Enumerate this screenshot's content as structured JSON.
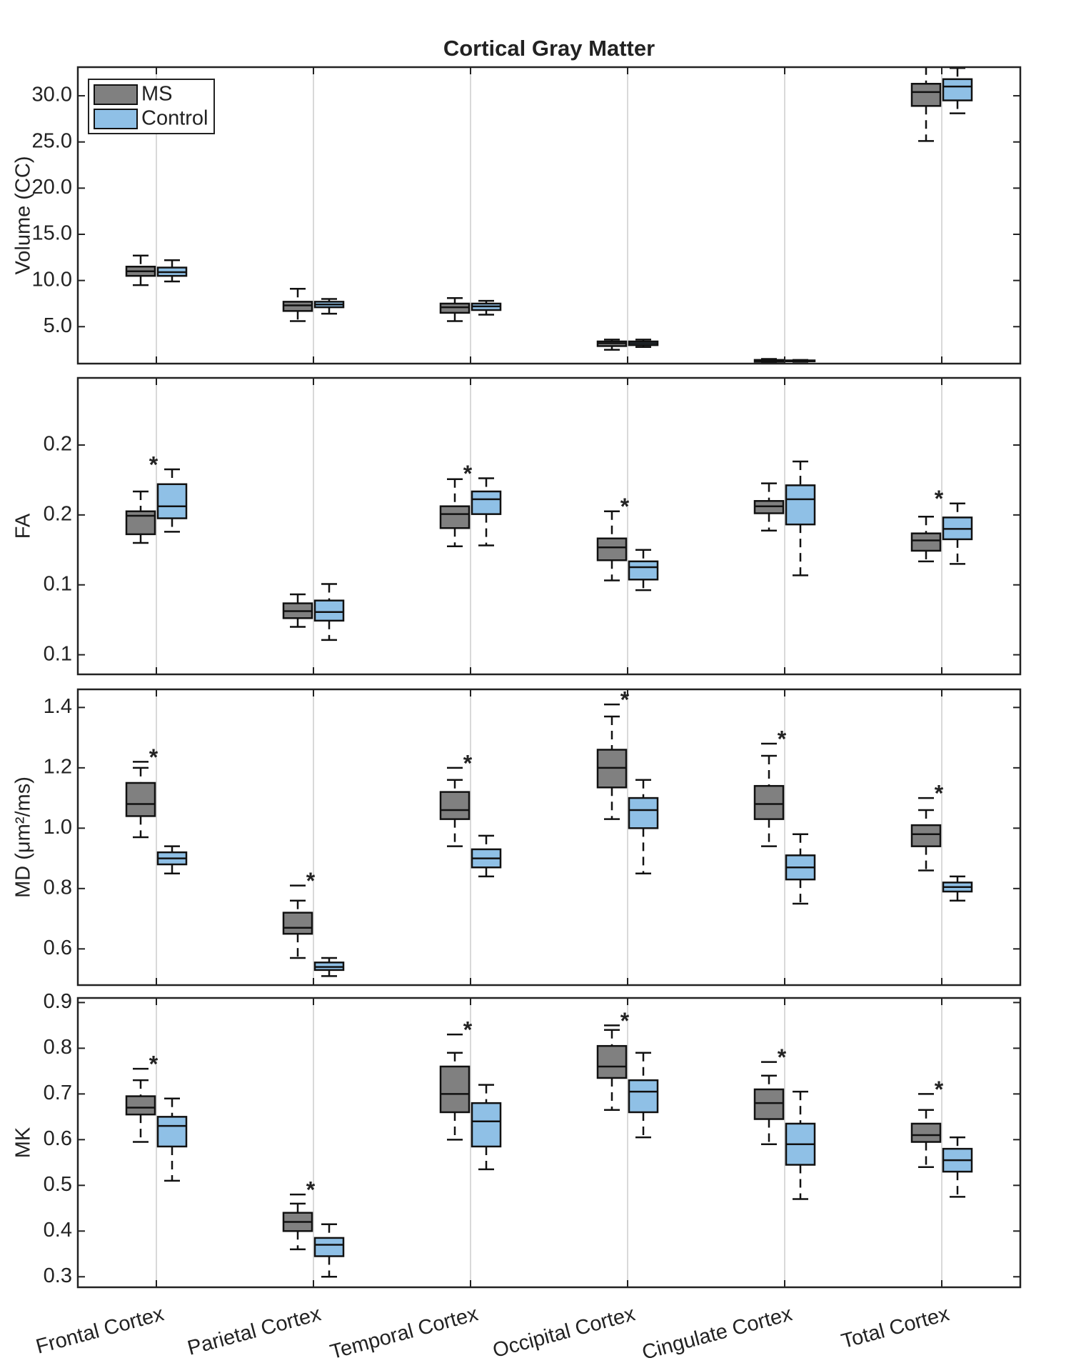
{
  "chart_data": [
    {
      "type": "box",
      "title": "Cortical Gray Matter",
      "ylabel": "Volume (CC)",
      "ylim": [
        1,
        33.1
      ],
      "yticks": [
        {
          "value": 5,
          "label": "5.0"
        },
        {
          "value": 10,
          "label": "10.0"
        },
        {
          "value": 15,
          "label": "15.0"
        },
        {
          "value": 20,
          "label": "20.0"
        },
        {
          "value": 25,
          "label": "25.0"
        },
        {
          "value": 30,
          "label": "30.0"
        }
      ],
      "xgrid": true,
      "legend": "upper-left",
      "annotations": [
        null,
        null,
        null,
        null,
        null,
        null
      ],
      "series": [
        {
          "name": "MS",
          "color": "#808080",
          "boxes": [
            {
              "whislo": 9.5,
              "q1": 10.5,
              "med": 11.0,
              "q3": 11.5,
              "whishi": 12.7,
              "outliers": []
            },
            {
              "whislo": 5.6,
              "q1": 6.7,
              "med": 7.3,
              "q3": 7.7,
              "whishi": 9.1,
              "outliers": []
            },
            {
              "whislo": 5.6,
              "q1": 6.5,
              "med": 7.1,
              "q3": 7.5,
              "whishi": 8.1,
              "outliers": []
            },
            {
              "whislo": 2.5,
              "q1": 2.9,
              "med": 3.2,
              "q3": 3.4,
              "whishi": 3.6,
              "outliers": []
            },
            {
              "whislo": 1.1,
              "q1": 1.2,
              "med": 1.3,
              "q3": 1.4,
              "whishi": 1.5,
              "outliers": []
            },
            {
              "whislo": 25.1,
              "q1": 28.9,
              "med": 30.4,
              "q3": 31.3,
              "whishi": 33.2,
              "outliers": []
            }
          ]
        },
        {
          "name": "Control",
          "color": "#8fc0e6",
          "boxes": [
            {
              "whislo": 9.9,
              "q1": 10.5,
              "med": 10.9,
              "q3": 11.4,
              "whishi": 12.2,
              "outliers": []
            },
            {
              "whislo": 6.4,
              "q1": 7.1,
              "med": 7.4,
              "q3": 7.7,
              "whishi": 8.0,
              "outliers": []
            },
            {
              "whislo": 6.3,
              "q1": 6.8,
              "med": 7.2,
              "q3": 7.5,
              "whishi": 7.8,
              "outliers": []
            },
            {
              "whislo": 2.8,
              "q1": 3.0,
              "med": 3.2,
              "q3": 3.4,
              "whishi": 3.6,
              "outliers": []
            },
            {
              "whislo": 1.2,
              "q1": 1.25,
              "med": 1.3,
              "q3": 1.35,
              "whishi": 1.4,
              "outliers": []
            },
            {
              "whislo": 28.1,
              "q1": 29.5,
              "med": 31.0,
              "q3": 31.8,
              "whishi": 33.0,
              "outliers": []
            }
          ]
        }
      ]
    },
    {
      "type": "box",
      "ylabel": "FA",
      "ylim": [
        0.118,
        0.224
      ],
      "yticks": [
        {
          "value": 0.125,
          "label": "0.1"
        },
        {
          "value": 0.15,
          "label": "0.1"
        },
        {
          "value": 0.175,
          "label": "0.2"
        },
        {
          "value": 0.2,
          "label": "0.2"
        }
      ],
      "xgrid": true,
      "annotations": [
        "*",
        null,
        "*",
        "*",
        null,
        "*"
      ],
      "series": [
        {
          "color": "#808080",
          "boxes": [
            {
              "whislo": 0.165,
              "q1": 0.1681,
              "med": 0.1747,
              "q3": 0.1763,
              "whishi": 0.1834,
              "outliers": []
            },
            {
              "whislo": 0.135,
              "q1": 0.1381,
              "med": 0.1406,
              "q3": 0.1434,
              "whishi": 0.1466,
              "outliers": []
            },
            {
              "whislo": 0.1638,
              "q1": 0.1703,
              "med": 0.1753,
              "q3": 0.1781,
              "whishi": 0.1878,
              "outliers": []
            },
            {
              "whislo": 0.1516,
              "q1": 0.1588,
              "med": 0.1634,
              "q3": 0.1666,
              "whishi": 0.1763,
              "outliers": []
            },
            {
              "whislo": 0.1694,
              "q1": 0.1756,
              "med": 0.1781,
              "q3": 0.18,
              "whishi": 0.1863,
              "outliers": []
            },
            {
              "whislo": 0.1584,
              "q1": 0.1622,
              "med": 0.1659,
              "q3": 0.1684,
              "whishi": 0.1744,
              "outliers": []
            }
          ]
        },
        {
          "color": "#8fc0e6",
          "boxes": [
            {
              "whislo": 0.169,
              "q1": 0.1738,
              "med": 0.1781,
              "q3": 0.186,
              "whishi": 0.1913,
              "outliers": []
            },
            {
              "whislo": 0.1303,
              "q1": 0.1372,
              "med": 0.1403,
              "q3": 0.1444,
              "whishi": 0.1503,
              "outliers": []
            },
            {
              "whislo": 0.1641,
              "q1": 0.1753,
              "med": 0.1806,
              "q3": 0.1834,
              "whishi": 0.1881,
              "outliers": []
            },
            {
              "whislo": 0.1481,
              "q1": 0.1519,
              "med": 0.1563,
              "q3": 0.1584,
              "whishi": 0.1625,
              "outliers": []
            },
            {
              "whislo": 0.1534,
              "q1": 0.1716,
              "med": 0.1806,
              "q3": 0.1856,
              "whishi": 0.1941,
              "outliers": []
            },
            {
              "whislo": 0.1575,
              "q1": 0.1663,
              "med": 0.17,
              "q3": 0.1741,
              "whishi": 0.1791,
              "outliers": []
            }
          ]
        }
      ]
    },
    {
      "type": "box",
      "ylabel": "MD (μm²/ms)",
      "ylim": [
        0.48,
        1.46
      ],
      "yticks": [
        0.6,
        0.8,
        {
          "value": 1,
          "label": "1.0"
        },
        1.2,
        1.4
      ],
      "xgrid": true,
      "annotations": [
        "*",
        "*",
        "*",
        "*",
        "*",
        "*"
      ],
      "series": [
        {
          "color": "#808080",
          "boxes": [
            {
              "whislo": 0.97,
              "q1": 1.04,
              "med": 1.08,
              "q3": 1.15,
              "whishi": 1.2,
              "outliers": [
                1.22
              ]
            },
            {
              "whislo": 0.57,
              "q1": 0.65,
              "med": 0.67,
              "q3": 0.72,
              "whishi": 0.76,
              "outliers": [
                0.81
              ]
            },
            {
              "whislo": 0.94,
              "q1": 1.03,
              "med": 1.06,
              "q3": 1.12,
              "whishi": 1.16,
              "outliers": [
                1.2
              ]
            },
            {
              "whislo": 1.03,
              "q1": 1.135,
              "med": 1.2,
              "q3": 1.26,
              "whishi": 1.37,
              "outliers": [
                1.41
              ]
            },
            {
              "whislo": 0.94,
              "q1": 1.03,
              "med": 1.08,
              "q3": 1.14,
              "whishi": 1.24,
              "outliers": [
                1.28
              ]
            },
            {
              "whislo": 0.86,
              "q1": 0.94,
              "med": 0.98,
              "q3": 1.01,
              "whishi": 1.06,
              "outliers": [
                1.1
              ]
            }
          ]
        },
        {
          "color": "#8fc0e6",
          "boxes": [
            {
              "whislo": 0.85,
              "q1": 0.88,
              "med": 0.9,
              "q3": 0.92,
              "whishi": 0.94,
              "outliers": []
            },
            {
              "whislo": 0.51,
              "q1": 0.53,
              "med": 0.54,
              "q3": 0.555,
              "whishi": 0.57,
              "outliers": []
            },
            {
              "whislo": 0.84,
              "q1": 0.87,
              "med": 0.9,
              "q3": 0.93,
              "whishi": 0.975,
              "outliers": []
            },
            {
              "whislo": 0.85,
              "q1": 1.0,
              "med": 1.06,
              "q3": 1.1,
              "whishi": 1.16,
              "outliers": []
            },
            {
              "whislo": 0.75,
              "q1": 0.83,
              "med": 0.87,
              "q3": 0.91,
              "whishi": 0.98,
              "outliers": []
            },
            {
              "whislo": 0.76,
              "q1": 0.79,
              "med": 0.805,
              "q3": 0.82,
              "whishi": 0.84,
              "outliers": []
            }
          ]
        }
      ]
    },
    {
      "type": "box",
      "ylabel": "MK",
      "ylim": [
        0.277,
        0.91
      ],
      "yticks": [
        0.3,
        0.4,
        0.5,
        0.6,
        0.7,
        0.8,
        0.9
      ],
      "xgrid": true,
      "categories": [
        "Frontal Cortex",
        "Parietal Cortex",
        "Temporal Cortex",
        "Occipital Cortex",
        "Cingulate Cortex",
        "Total Cortex"
      ],
      "annotations": [
        "*",
        "*",
        "*",
        "*",
        "*",
        "*"
      ],
      "series": [
        {
          "color": "#808080",
          "boxes": [
            {
              "whislo": 0.595,
              "q1": 0.655,
              "med": 0.67,
              "q3": 0.695,
              "whishi": 0.73,
              "outliers": [
                0.755
              ]
            },
            {
              "whislo": 0.36,
              "q1": 0.4,
              "med": 0.42,
              "q3": 0.44,
              "whishi": 0.46,
              "outliers": [
                0.48
              ]
            },
            {
              "whislo": 0.6,
              "q1": 0.66,
              "med": 0.7,
              "q3": 0.76,
              "whishi": 0.79,
              "outliers": [
                0.83
              ]
            },
            {
              "whislo": 0.665,
              "q1": 0.735,
              "med": 0.76,
              "q3": 0.805,
              "whishi": 0.84,
              "outliers": [
                0.85
              ]
            },
            {
              "whislo": 0.59,
              "q1": 0.645,
              "med": 0.68,
              "q3": 0.71,
              "whishi": 0.74,
              "outliers": [
                0.77
              ]
            },
            {
              "whislo": 0.54,
              "q1": 0.595,
              "med": 0.61,
              "q3": 0.635,
              "whishi": 0.665,
              "outliers": [
                0.7
              ]
            }
          ]
        },
        {
          "color": "#8fc0e6",
          "boxes": [
            {
              "whislo": 0.51,
              "q1": 0.585,
              "med": 0.63,
              "q3": 0.65,
              "whishi": 0.69,
              "outliers": []
            },
            {
              "whislo": 0.3,
              "q1": 0.345,
              "med": 0.37,
              "q3": 0.385,
              "whishi": 0.415,
              "outliers": []
            },
            {
              "whislo": 0.535,
              "q1": 0.585,
              "med": 0.64,
              "q3": 0.68,
              "whishi": 0.72,
              "outliers": []
            },
            {
              "whislo": 0.605,
              "q1": 0.66,
              "med": 0.705,
              "q3": 0.73,
              "whishi": 0.79,
              "outliers": []
            },
            {
              "whislo": 0.47,
              "q1": 0.545,
              "med": 0.59,
              "q3": 0.635,
              "whishi": 0.705,
              "outliers": []
            },
            {
              "whislo": 0.475,
              "q1": 0.53,
              "med": 0.555,
              "q3": 0.58,
              "whishi": 0.605,
              "outliers": []
            }
          ]
        }
      ]
    }
  ]
}
